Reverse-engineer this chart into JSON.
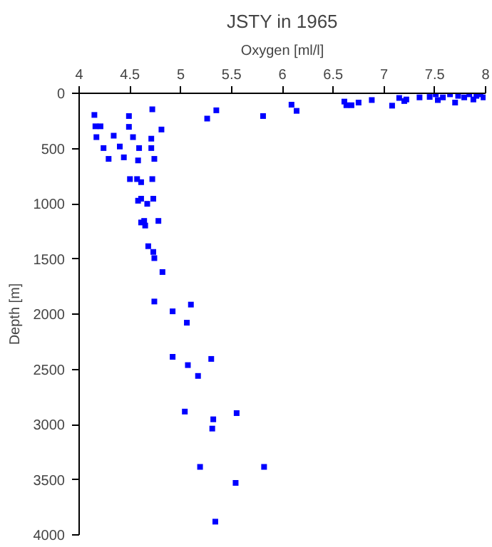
{
  "chart_data": {
    "type": "scatter",
    "title": "JSTY in 1965",
    "xlabel": "Oxygen [ml/l]",
    "ylabel": "Depth [m]",
    "x": [
      4.15,
      4.16,
      4.21,
      4.17,
      4.24,
      4.29,
      4.34,
      4.4,
      4.44,
      4.49,
      4.49,
      4.53,
      4.59,
      4.58,
      4.5,
      4.57,
      4.61,
      4.72,
      4.71,
      4.71,
      4.74,
      4.72,
      4.81,
      5.26,
      5.35,
      5.81,
      6.09,
      6.14,
      6.61,
      6.63,
      6.68,
      6.75,
      6.88,
      7.08,
      7.15,
      7.2,
      7.22,
      7.35,
      7.45,
      7.51,
      7.53,
      7.58,
      7.65,
      7.7,
      7.73,
      7.79,
      7.84,
      7.88,
      7.91,
      7.95,
      7.98,
      4.58,
      4.61,
      4.67,
      4.73,
      4.61,
      4.64,
      4.65,
      4.78,
      4.68,
      4.73,
      4.74,
      4.82,
      4.74,
      4.92,
      5.1,
      5.06,
      4.92,
      5.07,
      5.3,
      5.17,
      5.04,
      5.32,
      5.31,
      5.55,
      5.19,
      5.82,
      5.54,
      5.34
    ],
    "values": [
      196,
      299,
      299,
      397,
      496,
      594,
      384,
      482,
      580,
      206,
      304,
      397,
      496,
      608,
      777,
      777,
      805,
      145,
      411,
      496,
      594,
      777,
      328,
      229,
      154,
      206,
      103,
      159,
      75,
      108,
      108,
      84,
      61,
      112,
      42,
      70,
      56,
      37,
      33,
      9,
      61,
      37,
      9,
      84,
      23,
      37,
      9,
      56,
      23,
      9,
      37,
      973,
      955,
      1001,
      955,
      1170,
      1156,
      1198,
      1156,
      1385,
      1437,
      1493,
      1619,
      1886,
      1975,
      1914,
      2078,
      2387,
      2462,
      2406,
      2560,
      2883,
      2953,
      3037,
      2897,
      3384,
      3384,
      3529,
      3880
    ],
    "color": "#0000ff",
    "marker": "square",
    "xlim": [
      4,
      8
    ],
    "xticks": [
      4,
      {
        "value": 4.5,
        "label": "4.5"
      },
      5,
      {
        "value": 5.5,
        "label": "5.5"
      },
      6,
      {
        "value": 6.5,
        "label": "6.5"
      },
      7,
      {
        "value": 7.5,
        "label": "7.5"
      },
      8
    ],
    "ylim": [
      4000,
      0
    ],
    "yticks": [
      0,
      500,
      1000,
      1500,
      2000,
      2500,
      3000,
      3500,
      4000
    ],
    "grid": false
  }
}
